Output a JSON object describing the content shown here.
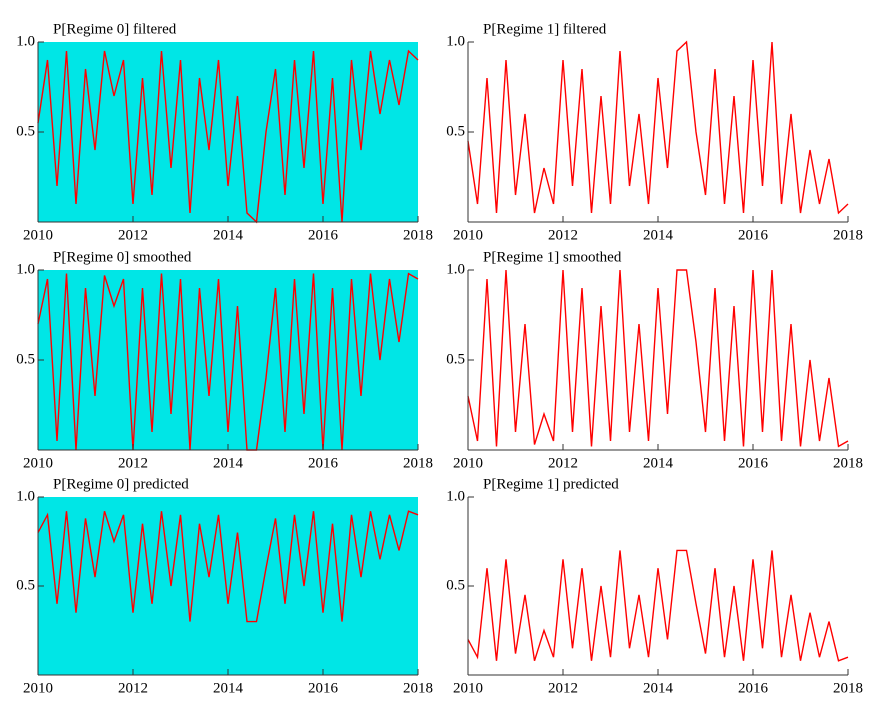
{
  "chart_data": [
    {
      "type": "line",
      "title": "P[Regime 0] filtered",
      "background": "#00e6e6",
      "color": "#ff0000",
      "x": [
        2010,
        2010.2,
        2010.4,
        2010.6,
        2010.8,
        2011,
        2011.2,
        2011.4,
        2011.6,
        2011.8,
        2012,
        2012.2,
        2012.4,
        2012.6,
        2012.8,
        2013,
        2013.2,
        2013.4,
        2013.6,
        2013.8,
        2014,
        2014.2,
        2014.4,
        2014.6,
        2014.8,
        2015,
        2015.2,
        2015.4,
        2015.6,
        2015.8,
        2016,
        2016.2,
        2016.4,
        2016.6,
        2016.8,
        2017,
        2017.2,
        2017.4,
        2017.6,
        2017.8,
        2018
      ],
      "values": [
        0.55,
        0.9,
        0.2,
        0.95,
        0.1,
        0.85,
        0.4,
        0.95,
        0.7,
        0.9,
        0.1,
        0.8,
        0.15,
        0.95,
        0.3,
        0.9,
        0.05,
        0.8,
        0.4,
        0.9,
        0.2,
        0.7,
        0.05,
        0,
        0.5,
        0.85,
        0.15,
        0.9,
        0.3,
        0.95,
        0.1,
        0.8,
        0,
        0.9,
        0.4,
        0.95,
        0.6,
        0.9,
        0.65,
        0.95,
        0.9
      ],
      "xlim": [
        2010,
        2018
      ],
      "xticks": [
        2010,
        2012,
        2014,
        2016,
        2018
      ],
      "ylim": [
        0,
        1
      ],
      "yticks": [
        {
          "value": 1,
          "label": "1.0"
        },
        0.5
      ]
    },
    {
      "type": "line",
      "title": "P[Regime 1] filtered",
      "color": "#ff0000",
      "x": [
        2010,
        2010.2,
        2010.4,
        2010.6,
        2010.8,
        2011,
        2011.2,
        2011.4,
        2011.6,
        2011.8,
        2012,
        2012.2,
        2012.4,
        2012.6,
        2012.8,
        2013,
        2013.2,
        2013.4,
        2013.6,
        2013.8,
        2014,
        2014.2,
        2014.4,
        2014.6,
        2014.8,
        2015,
        2015.2,
        2015.4,
        2015.6,
        2015.8,
        2016,
        2016.2,
        2016.4,
        2016.6,
        2016.8,
        2017,
        2017.2,
        2017.4,
        2017.6,
        2017.8,
        2018
      ],
      "values": [
        0.45,
        0.1,
        0.8,
        0.05,
        0.9,
        0.15,
        0.6,
        0.05,
        0.3,
        0.1,
        0.9,
        0.2,
        0.85,
        0.05,
        0.7,
        0.1,
        0.95,
        0.2,
        0.6,
        0.1,
        0.8,
        0.3,
        0.95,
        1.0,
        0.5,
        0.15,
        0.85,
        0.1,
        0.7,
        0.05,
        0.9,
        0.2,
        1.0,
        0.1,
        0.6,
        0.05,
        0.4,
        0.1,
        0.35,
        0.05,
        0.1
      ],
      "xlim": [
        2010,
        2018
      ],
      "xticks": [
        2010,
        2012,
        2014,
        2016,
        2018
      ],
      "ylim": [
        0,
        1
      ],
      "yticks": [
        {
          "value": 1,
          "label": "1.0"
        },
        0.5
      ]
    },
    {
      "type": "line",
      "title": "P[Regime 0] smoothed",
      "background": "#00e6e6",
      "color": "#ff0000",
      "x": [
        2010,
        2010.2,
        2010.4,
        2010.6,
        2010.8,
        2011,
        2011.2,
        2011.4,
        2011.6,
        2011.8,
        2012,
        2012.2,
        2012.4,
        2012.6,
        2012.8,
        2013,
        2013.2,
        2013.4,
        2013.6,
        2013.8,
        2014,
        2014.2,
        2014.4,
        2014.6,
        2014.8,
        2015,
        2015.2,
        2015.4,
        2015.6,
        2015.8,
        2016,
        2016.2,
        2016.4,
        2016.6,
        2016.8,
        2017,
        2017.2,
        2017.4,
        2017.6,
        2017.8,
        2018
      ],
      "values": [
        0.7,
        0.95,
        0.05,
        0.98,
        0,
        0.9,
        0.3,
        0.97,
        0.8,
        0.95,
        0,
        0.9,
        0.1,
        0.98,
        0.2,
        0.95,
        0,
        0.9,
        0.3,
        0.95,
        0.1,
        0.8,
        0,
        0,
        0.4,
        0.9,
        0.1,
        0.95,
        0.2,
        0.98,
        0,
        0.9,
        0,
        0.95,
        0.3,
        0.98,
        0.5,
        0.95,
        0.6,
        0.98,
        0.95
      ],
      "xlim": [
        2010,
        2018
      ],
      "xticks": [
        2010,
        2012,
        2014,
        2016,
        2018
      ],
      "ylim": [
        0,
        1
      ],
      "yticks": [
        {
          "value": 1,
          "label": "1.0"
        },
        0.5
      ]
    },
    {
      "type": "line",
      "title": "P[Regime 1] smoothed",
      "color": "#ff0000",
      "x": [
        2010,
        2010.2,
        2010.4,
        2010.6,
        2010.8,
        2011,
        2011.2,
        2011.4,
        2011.6,
        2011.8,
        2012,
        2012.2,
        2012.4,
        2012.6,
        2012.8,
        2013,
        2013.2,
        2013.4,
        2013.6,
        2013.8,
        2014,
        2014.2,
        2014.4,
        2014.6,
        2014.8,
        2015,
        2015.2,
        2015.4,
        2015.6,
        2015.8,
        2016,
        2016.2,
        2016.4,
        2016.6,
        2016.8,
        2017,
        2017.2,
        2017.4,
        2017.6,
        2017.8,
        2018
      ],
      "values": [
        0.3,
        0.05,
        0.95,
        0.02,
        1.0,
        0.1,
        0.7,
        0.03,
        0.2,
        0.05,
        1.0,
        0.1,
        0.9,
        0.02,
        0.8,
        0.05,
        1.0,
        0.1,
        0.7,
        0.05,
        0.9,
        0.2,
        1.0,
        1.0,
        0.6,
        0.1,
        0.9,
        0.05,
        0.8,
        0.02,
        1.0,
        0.1,
        1.0,
        0.05,
        0.7,
        0.02,
        0.5,
        0.05,
        0.4,
        0.02,
        0.05
      ],
      "xlim": [
        2010,
        2018
      ],
      "xticks": [
        2010,
        2012,
        2014,
        2016,
        2018
      ],
      "ylim": [
        0,
        1
      ],
      "yticks": [
        {
          "value": 1,
          "label": "1.0"
        },
        0.5
      ]
    },
    {
      "type": "line",
      "title": "P[Regime 0] predicted",
      "background": "#00e6e6",
      "color": "#ff0000",
      "x": [
        2010,
        2010.2,
        2010.4,
        2010.6,
        2010.8,
        2011,
        2011.2,
        2011.4,
        2011.6,
        2011.8,
        2012,
        2012.2,
        2012.4,
        2012.6,
        2012.8,
        2013,
        2013.2,
        2013.4,
        2013.6,
        2013.8,
        2014,
        2014.2,
        2014.4,
        2014.6,
        2014.8,
        2015,
        2015.2,
        2015.4,
        2015.6,
        2015.8,
        2016,
        2016.2,
        2016.4,
        2016.6,
        2016.8,
        2017,
        2017.2,
        2017.4,
        2017.6,
        2017.8,
        2018
      ],
      "values": [
        0.8,
        0.9,
        0.4,
        0.92,
        0.35,
        0.88,
        0.55,
        0.92,
        0.75,
        0.9,
        0.35,
        0.85,
        0.4,
        0.92,
        0.5,
        0.9,
        0.3,
        0.85,
        0.55,
        0.9,
        0.4,
        0.8,
        0.3,
        0.3,
        0.6,
        0.88,
        0.4,
        0.9,
        0.5,
        0.92,
        0.35,
        0.85,
        0.3,
        0.9,
        0.55,
        0.92,
        0.65,
        0.9,
        0.7,
        0.92,
        0.9
      ],
      "xlim": [
        2010,
        2018
      ],
      "xticks": [
        2010,
        2012,
        2014,
        2016,
        2018
      ],
      "ylim": [
        0,
        1
      ],
      "yticks": [
        {
          "value": 1,
          "label": "1.0"
        },
        0.5
      ]
    },
    {
      "type": "line",
      "title": "P[Regime 1] predicted",
      "color": "#ff0000",
      "x": [
        2010,
        2010.2,
        2010.4,
        2010.6,
        2010.8,
        2011,
        2011.2,
        2011.4,
        2011.6,
        2011.8,
        2012,
        2012.2,
        2012.4,
        2012.6,
        2012.8,
        2013,
        2013.2,
        2013.4,
        2013.6,
        2013.8,
        2014,
        2014.2,
        2014.4,
        2014.6,
        2014.8,
        2015,
        2015.2,
        2015.4,
        2015.6,
        2015.8,
        2016,
        2016.2,
        2016.4,
        2016.6,
        2016.8,
        2017,
        2017.2,
        2017.4,
        2017.6,
        2017.8,
        2018
      ],
      "values": [
        0.2,
        0.1,
        0.6,
        0.08,
        0.65,
        0.12,
        0.45,
        0.08,
        0.25,
        0.1,
        0.65,
        0.15,
        0.6,
        0.08,
        0.5,
        0.1,
        0.7,
        0.15,
        0.45,
        0.1,
        0.6,
        0.2,
        0.7,
        0.7,
        0.4,
        0.12,
        0.6,
        0.1,
        0.5,
        0.08,
        0.65,
        0.15,
        0.7,
        0.1,
        0.45,
        0.08,
        0.35,
        0.1,
        0.3,
        0.08,
        0.1
      ],
      "xlim": [
        2010,
        2018
      ],
      "xticks": [
        2010,
        2012,
        2014,
        2016,
        2018
      ],
      "ylim": [
        0,
        1
      ],
      "yticks": [
        {
          "value": 1,
          "label": "1.0"
        },
        0.5
      ]
    }
  ]
}
